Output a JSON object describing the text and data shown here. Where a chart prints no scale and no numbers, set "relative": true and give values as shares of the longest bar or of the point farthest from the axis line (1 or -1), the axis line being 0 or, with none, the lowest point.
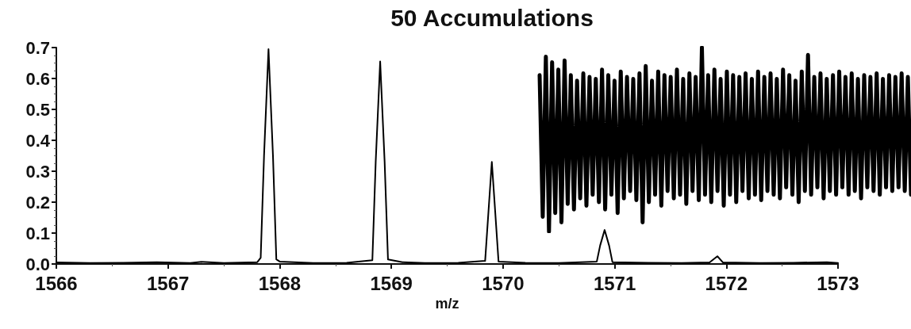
{
  "chart_data": [
    {
      "type": "line",
      "title": "50 Accumulations",
      "xlabel": "m/z",
      "x": [
        1566,
        1566.3,
        1566.6,
        1566.9,
        1567.2,
        1567.3,
        1567.5,
        1567.8,
        1567.83,
        1567.86,
        1567.9,
        1567.94,
        1567.97,
        1568.0,
        1568.3,
        1568.6,
        1568.83,
        1568.86,
        1568.9,
        1568.94,
        1568.97,
        1569.1,
        1569.3,
        1569.6,
        1569.84,
        1569.87,
        1569.9,
        1569.93,
        1569.96,
        1570.2,
        1570.5,
        1570.84,
        1570.87,
        1570.91,
        1570.95,
        1570.98,
        1571.3,
        1571.6,
        1571.85,
        1571.92,
        1571.97,
        1572.3,
        1572.6,
        1572.9,
        1573
      ],
      "series": [
        {
          "color": "#000000",
          "values": [
            0.005,
            0.003,
            0.004,
            0.006,
            0.003,
            0.007,
            0.003,
            0.006,
            0.02,
            0.35,
            0.695,
            0.35,
            0.015,
            0.008,
            0.003,
            0.004,
            0.012,
            0.33,
            0.655,
            0.33,
            0.015,
            0.006,
            0.003,
            0.004,
            0.01,
            0.17,
            0.33,
            0.17,
            0.008,
            0.004,
            0.003,
            0.008,
            0.06,
            0.11,
            0.06,
            0.006,
            0.004,
            0.003,
            0.005,
            0.025,
            0.005,
            0.003,
            0.004,
            0.006,
            0.003
          ]
        }
      ],
      "xlim": [
        1566,
        1573
      ],
      "xticks": [
        1566,
        1567,
        1568,
        1569,
        1570,
        1571,
        1572,
        1573
      ],
      "ylim": [
        0,
        0.7
      ],
      "yticks": [
        {
          "value": 0,
          "label": "0.0"
        },
        {
          "value": 0.1,
          "label": "0.1"
        },
        {
          "value": 0.2,
          "label": "0.2"
        },
        {
          "value": 0.3,
          "label": "0.3"
        },
        {
          "value": 0.4,
          "label": "0.4"
        },
        {
          "value": 0.5,
          "label": "0.5"
        },
        {
          "value": 0.6,
          "label": "0.6"
        },
        {
          "value": 0.7,
          "label": "0.7"
        }
      ],
      "grid": false,
      "marker": "none",
      "line_style": "solid"
    },
    {
      "type": "line",
      "relative": true,
      "categories": [
        null,
        null,
        null,
        null,
        null,
        null,
        null,
        null,
        null,
        null,
        null,
        null,
        null,
        null,
        null,
        null,
        null,
        null,
        null,
        null,
        null,
        null,
        null,
        null,
        null,
        null,
        null,
        null,
        null,
        null,
        null,
        null,
        null,
        null,
        null,
        null,
        null,
        null,
        null,
        null,
        null,
        null,
        null,
        null,
        null,
        null,
        null,
        null,
        null,
        null,
        null,
        null,
        null,
        null,
        null,
        null,
        null,
        null,
        null,
        null,
        null,
        null,
        null,
        null,
        null,
        null,
        null,
        null,
        null,
        null,
        null,
        null,
        null,
        null,
        null,
        null,
        null,
        null,
        null,
        null,
        null,
        null,
        null,
        null,
        null,
        null,
        null,
        null,
        null,
        null,
        null,
        null,
        null,
        null,
        null,
        null,
        null,
        null,
        null,
        null,
        null,
        null,
        null,
        null,
        null,
        null,
        null,
        null,
        null,
        null,
        null,
        null,
        null,
        null,
        null,
        null,
        null,
        null,
        null,
        null
      ],
      "series": [
        {
          "color": "#000000",
          "values": [
            0.85,
            0.08,
            0.95,
            0.0,
            0.92,
            0.1,
            0.88,
            0.05,
            0.93,
            0.15,
            0.85,
            0.12,
            0.82,
            0.18,
            0.86,
            0.14,
            0.84,
            0.2,
            0.83,
            0.16,
            0.88,
            0.12,
            0.85,
            0.2,
            0.82,
            0.1,
            0.87,
            0.18,
            0.84,
            0.22,
            0.83,
            0.17,
            0.86,
            0.05,
            0.9,
            0.16,
            0.82,
            0.2,
            0.87,
            0.14,
            0.85,
            0.22,
            0.84,
            0.18,
            0.88,
            0.2,
            0.83,
            0.15,
            0.86,
            0.22,
            0.84,
            0.17,
            1.0,
            0.2,
            0.85,
            0.16,
            0.88,
            0.22,
            0.83,
            0.14,
            0.87,
            0.2,
            0.85,
            0.16,
            0.84,
            0.22,
            0.86,
            0.18,
            0.83,
            0.2,
            0.87,
            0.17,
            0.84,
            0.22,
            0.86,
            0.2,
            0.83,
            0.18,
            0.88,
            0.24,
            0.85,
            0.2,
            0.82,
            0.16,
            0.87,
            0.22,
            0.96,
            0.2,
            0.84,
            0.24,
            0.86,
            0.18,
            0.83,
            0.22,
            0.85,
            0.2,
            0.87,
            0.24,
            0.84,
            0.2,
            0.86,
            0.22,
            0.83,
            0.18,
            0.85,
            0.24,
            0.84,
            0.22,
            0.86,
            0.2,
            0.83,
            0.24,
            0.85,
            0.22,
            0.84,
            0.24,
            0.86,
            0.22,
            0.84,
            0.2
          ]
        }
      ],
      "grid": false,
      "marker": "none",
      "line_style": "solid"
    }
  ]
}
